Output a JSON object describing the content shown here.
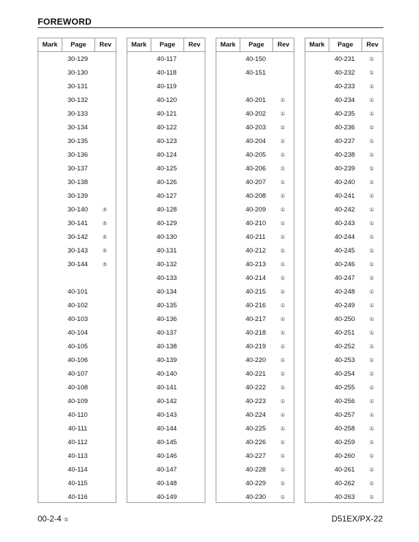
{
  "header": {
    "title": "FOREWORD"
  },
  "table_headers": {
    "mark": "Mark",
    "page": "Page",
    "rev": "Rev"
  },
  "columns": [
    {
      "rows": [
        {
          "page": "30-129",
          "rev": ""
        },
        {
          "page": "30-130",
          "rev": ""
        },
        {
          "page": "30-131",
          "rev": ""
        },
        {
          "page": "30-132",
          "rev": ""
        },
        {
          "page": "30-133",
          "rev": ""
        },
        {
          "page": "30-134",
          "rev": ""
        },
        {
          "page": "30-135",
          "rev": ""
        },
        {
          "page": "30-136",
          "rev": ""
        },
        {
          "page": "30-137",
          "rev": ""
        },
        {
          "page": "30-138",
          "rev": ""
        },
        {
          "page": "30-139",
          "rev": ""
        },
        {
          "page": "30-140",
          "rev": "⑤"
        },
        {
          "page": "30-141",
          "rev": "⑤"
        },
        {
          "page": "30-142",
          "rev": "⑤"
        },
        {
          "page": "30-143",
          "rev": "⑤"
        },
        {
          "page": "30-144",
          "rev": "⑤"
        },
        {
          "page": "",
          "rev": ""
        },
        {
          "page": "40-101",
          "rev": ""
        },
        {
          "page": "40-102",
          "rev": ""
        },
        {
          "page": "40-103",
          "rev": ""
        },
        {
          "page": "40-104",
          "rev": ""
        },
        {
          "page": "40-105",
          "rev": ""
        },
        {
          "page": "40-106",
          "rev": ""
        },
        {
          "page": "40-107",
          "rev": ""
        },
        {
          "page": "40-108",
          "rev": ""
        },
        {
          "page": "40-109",
          "rev": ""
        },
        {
          "page": "40-110",
          "rev": ""
        },
        {
          "page": "40-111",
          "rev": ""
        },
        {
          "page": "40-112",
          "rev": ""
        },
        {
          "page": "40-113",
          "rev": ""
        },
        {
          "page": "40-114",
          "rev": ""
        },
        {
          "page": "40-115",
          "rev": ""
        },
        {
          "page": "40-116",
          "rev": ""
        }
      ]
    },
    {
      "rows": [
        {
          "page": "40-117",
          "rev": ""
        },
        {
          "page": "40-118",
          "rev": ""
        },
        {
          "page": "40-119",
          "rev": ""
        },
        {
          "page": "40-120",
          "rev": ""
        },
        {
          "page": "40-121",
          "rev": ""
        },
        {
          "page": "40-122",
          "rev": ""
        },
        {
          "page": "40-123",
          "rev": ""
        },
        {
          "page": "40-124",
          "rev": ""
        },
        {
          "page": "40-125",
          "rev": ""
        },
        {
          "page": "40-126",
          "rev": ""
        },
        {
          "page": "40-127",
          "rev": ""
        },
        {
          "page": "40-128",
          "rev": ""
        },
        {
          "page": "40-129",
          "rev": ""
        },
        {
          "page": "40-130",
          "rev": ""
        },
        {
          "page": "40-131",
          "rev": ""
        },
        {
          "page": "40-132",
          "rev": ""
        },
        {
          "page": "40-133",
          "rev": ""
        },
        {
          "page": "40-134",
          "rev": ""
        },
        {
          "page": "40-135",
          "rev": ""
        },
        {
          "page": "40-136",
          "rev": ""
        },
        {
          "page": "40-137",
          "rev": ""
        },
        {
          "page": "40-138",
          "rev": ""
        },
        {
          "page": "40-139",
          "rev": ""
        },
        {
          "page": "40-140",
          "rev": ""
        },
        {
          "page": "40-141",
          "rev": ""
        },
        {
          "page": "40-142",
          "rev": ""
        },
        {
          "page": "40-143",
          "rev": ""
        },
        {
          "page": "40-144",
          "rev": ""
        },
        {
          "page": "40-145",
          "rev": ""
        },
        {
          "page": "40-146",
          "rev": ""
        },
        {
          "page": "40-147",
          "rev": ""
        },
        {
          "page": "40-148",
          "rev": ""
        },
        {
          "page": "40-149",
          "rev": ""
        }
      ]
    },
    {
      "rows": [
        {
          "page": "40-150",
          "rev": ""
        },
        {
          "page": "40-151",
          "rev": ""
        },
        {
          "page": "",
          "rev": ""
        },
        {
          "page": "40-201",
          "rev": "①"
        },
        {
          "page": "40-202",
          "rev": "①"
        },
        {
          "page": "40-203",
          "rev": "①"
        },
        {
          "page": "40-204",
          "rev": "①"
        },
        {
          "page": "40-205",
          "rev": "①"
        },
        {
          "page": "40-206",
          "rev": "①"
        },
        {
          "page": "40-207",
          "rev": "①"
        },
        {
          "page": "40-208",
          "rev": "①"
        },
        {
          "page": "40-209",
          "rev": "①"
        },
        {
          "page": "40-210",
          "rev": "①"
        },
        {
          "page": "40-211",
          "rev": "①"
        },
        {
          "page": "40-212",
          "rev": "①"
        },
        {
          "page": "40-213",
          "rev": "①"
        },
        {
          "page": "40-214",
          "rev": "①"
        },
        {
          "page": "40-215",
          "rev": "①"
        },
        {
          "page": "40-216",
          "rev": "①"
        },
        {
          "page": "40-217",
          "rev": "①"
        },
        {
          "page": "40-218",
          "rev": "①"
        },
        {
          "page": "40-219",
          "rev": "①"
        },
        {
          "page": "40-220",
          "rev": "①"
        },
        {
          "page": "40-221",
          "rev": "①"
        },
        {
          "page": "40-222",
          "rev": "①"
        },
        {
          "page": "40-223",
          "rev": "①"
        },
        {
          "page": "40-224",
          "rev": "①"
        },
        {
          "page": "40-225",
          "rev": "①"
        },
        {
          "page": "40-226",
          "rev": "①"
        },
        {
          "page": "40-227",
          "rev": "①"
        },
        {
          "page": "40-228",
          "rev": "①"
        },
        {
          "page": "40-229",
          "rev": "①"
        },
        {
          "page": "40-230",
          "rev": "①"
        }
      ]
    },
    {
      "rows": [
        {
          "page": "40-231",
          "rev": "①"
        },
        {
          "page": "40-232",
          "rev": "①"
        },
        {
          "page": "40-233",
          "rev": "①"
        },
        {
          "page": "40-234",
          "rev": "①"
        },
        {
          "page": "40-235",
          "rev": "①"
        },
        {
          "page": "40-236",
          "rev": "①"
        },
        {
          "page": "40-237",
          "rev": "①"
        },
        {
          "page": "40-238",
          "rev": "①"
        },
        {
          "page": "40-239",
          "rev": "①"
        },
        {
          "page": "40-240",
          "rev": "①"
        },
        {
          "page": "40-241",
          "rev": "①"
        },
        {
          "page": "40-242",
          "rev": "①"
        },
        {
          "page": "40-243",
          "rev": "①"
        },
        {
          "page": "40-244",
          "rev": "①"
        },
        {
          "page": "40-245",
          "rev": "①"
        },
        {
          "page": "40-246",
          "rev": "①"
        },
        {
          "page": "40-247",
          "rev": "①"
        },
        {
          "page": "40-248",
          "rev": "①"
        },
        {
          "page": "40-249",
          "rev": "①"
        },
        {
          "page": "40-250",
          "rev": "①"
        },
        {
          "page": "40-251",
          "rev": "①"
        },
        {
          "page": "40-252",
          "rev": "①"
        },
        {
          "page": "40-253",
          "rev": "①"
        },
        {
          "page": "40-254",
          "rev": "①"
        },
        {
          "page": "40-255",
          "rev": "①"
        },
        {
          "page": "40-256",
          "rev": "①"
        },
        {
          "page": "40-257",
          "rev": "①"
        },
        {
          "page": "40-258",
          "rev": "①"
        },
        {
          "page": "40-259",
          "rev": "①"
        },
        {
          "page": "40-260",
          "rev": "①"
        },
        {
          "page": "40-261",
          "rev": "①"
        },
        {
          "page": "40-262",
          "rev": "①"
        },
        {
          "page": "40-263",
          "rev": "①"
        }
      ]
    }
  ],
  "footer": {
    "page_number": "00-2-4",
    "page_rev": "⑤",
    "model": "D51EX/PX-22"
  }
}
